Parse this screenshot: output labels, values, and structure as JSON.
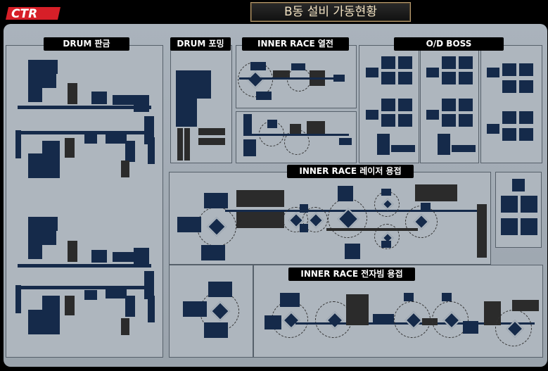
{
  "header": {
    "logo_text": "CTR",
    "title": "B동 설비 가동현황"
  },
  "sections": {
    "drum_pangeum": "DRUM 판금",
    "drum_forming": "DRUM 포밍",
    "inner_race_heat": "INNER RACE 열전",
    "od_boss": "O/D BOSS",
    "inner_race_laser": "INNER RACE  레이저 용접",
    "inner_race_ebeam": "INNER RACE 전자빔 용접"
  },
  "colors": {
    "equipment": "#152a4a",
    "idle_equipment": "#2b2b2b",
    "panel": "#a4adb6",
    "logo_red": "#e0202a"
  }
}
